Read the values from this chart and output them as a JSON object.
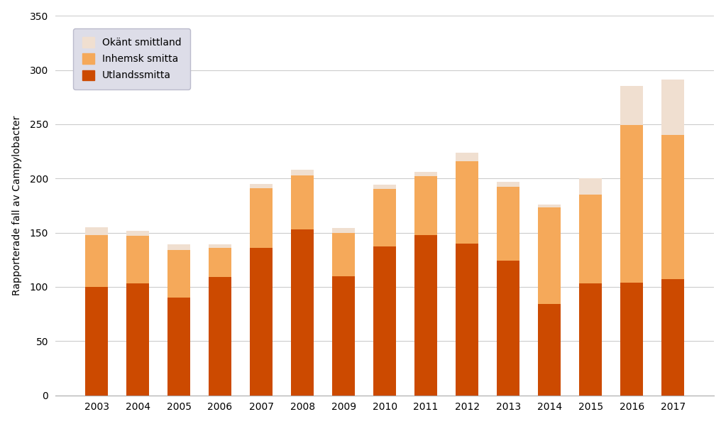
{
  "years": [
    2003,
    2004,
    2005,
    2006,
    2007,
    2008,
    2009,
    2010,
    2011,
    2012,
    2013,
    2014,
    2015,
    2016,
    2017
  ],
  "utlandssmitta": [
    100,
    103,
    90,
    109,
    136,
    153,
    110,
    137,
    148,
    140,
    124,
    84,
    103,
    104,
    107
  ],
  "inhemsk_smitta": [
    48,
    44,
    44,
    27,
    55,
    50,
    40,
    53,
    54,
    76,
    68,
    89,
    82,
    145,
    133
  ],
  "okant_smittland": [
    7,
    5,
    5,
    3,
    4,
    5,
    4,
    4,
    4,
    8,
    5,
    3,
    15,
    36,
    51
  ],
  "color_utland": "#cc4a00",
  "color_inhemsk": "#f5a95a",
  "color_okant": "#f0dfd0",
  "ylabel": "Rapporterade fall av Campylobacter",
  "ylim": [
    0,
    350
  ],
  "yticks": [
    0,
    50,
    100,
    150,
    200,
    250,
    300,
    350
  ],
  "legend_labels": [
    "Okänt smittland",
    "Inhemsk smitta",
    "Utlandssmitta"
  ],
  "legend_bg_color": "#dddde8",
  "background_color": "#ffffff",
  "grid_color": "#cccccc",
  "tick_fontsize": 10,
  "bar_width": 0.55
}
